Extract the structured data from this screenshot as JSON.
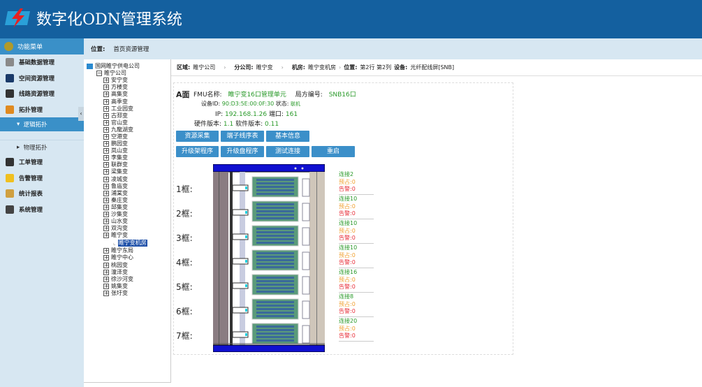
{
  "header": {
    "title": "数字化ODN管理系统"
  },
  "sidebar": {
    "menu_title": "功能菜单",
    "items": [
      {
        "label": "基础数据管理",
        "icon": "calculator-icon",
        "color": "#8a8a8a"
      },
      {
        "label": "空间资源管理",
        "icon": "globe-icon",
        "color": "#1a3a6a"
      },
      {
        "label": "线路资源管理",
        "icon": "headphones-icon",
        "color": "#333333"
      },
      {
        "label": "拓扑管理",
        "icon": "topology-icon",
        "color": "#e08a20"
      }
    ],
    "sub_selected": "逻辑拓扑",
    "sub_other": "物理拓扑",
    "items2": [
      {
        "label": "工单管理",
        "icon": "book-icon",
        "color": "#333333"
      },
      {
        "label": "告警管理",
        "icon": "bulb-icon",
        "color": "#f0c020"
      },
      {
        "label": "统计报表",
        "icon": "report-icon",
        "color": "#d0a040"
      },
      {
        "label": "系统管理",
        "icon": "tools-icon",
        "color": "#444444"
      }
    ]
  },
  "location": {
    "label": "位置:",
    "value": "首页资源管理"
  },
  "tree": {
    "root": "国网睢宁供电公司",
    "company": "睢宁公司",
    "nodes_before": [
      "安宁变",
      "方楼变",
      "高集变",
      "高季变",
      "工业园变",
      "古邳变",
      "官山变",
      "九龍湖变",
      "空港变",
      "鹏园变",
      "岚山变",
      "李集变",
      "联群变",
      "梁集变",
      "凌城变",
      "鲁庙变",
      "浦棠变",
      "秦庄变",
      "邱集变",
      "沙集变",
      "山水变",
      "双沟变"
    ],
    "expanded": "睢宁变",
    "selected": "睢宁变机房",
    "nodes_after": [
      "睢宁东局",
      "睢宁中心",
      "桃园变",
      "潼泽变",
      "徐沙河变",
      "姚集变",
      "张圩变"
    ]
  },
  "breadcrumb": [
    {
      "k": "区域:",
      "v": "睢宁公司"
    },
    {
      "k": "分公司:",
      "v": "睢宁变"
    },
    {
      "k": "机房:",
      "v": "睢宁变机房"
    },
    {
      "k": "位置:",
      "v": "第2行 第2列"
    },
    {
      "k": "设备:",
      "v": "光纤配线屏[SNB]"
    }
  ],
  "device": {
    "face": "A面",
    "fmu_label": "FMU名称:",
    "fmu": "睢宁变16口管理单元",
    "office_label": "局方编号:",
    "office": "SNB16口",
    "id_label": "设备ID:",
    "id": "90:D3:5E:00:0F:30",
    "state_label": "状态:",
    "state": "联机",
    "ip_label": "IP:",
    "ip": "192.168.1.26",
    "port_label": "端口:",
    "port": "161",
    "hw_label": "硬件版本:",
    "hw": "1.1",
    "sw_label": "软件版本:",
    "sw": "0.11"
  },
  "buttons": [
    "资源采集",
    "端子线序表",
    "基本信息",
    "升级架程序",
    "升级盘程序",
    "测试连接",
    "重启"
  ],
  "frames": [
    {
      "label": "1框:",
      "connect": "连接2",
      "reserve": "预占:0",
      "alarm": "告警:0"
    },
    {
      "label": "2框:",
      "connect": "连接10",
      "reserve": "预占:0",
      "alarm": "告警:0"
    },
    {
      "label": "3框:",
      "connect": "连接10",
      "reserve": "预占:0",
      "alarm": "告警:0"
    },
    {
      "label": "4框:",
      "connect": "连接10",
      "reserve": "预占:0",
      "alarm": "告警:0"
    },
    {
      "label": "5框:",
      "connect": "连接16",
      "reserve": "预占:0",
      "alarm": "告警:0"
    },
    {
      "label": "6框:",
      "connect": "连接8",
      "reserve": "预占:0",
      "alarm": "告警:0"
    },
    {
      "label": "7框:",
      "connect": "连接20",
      "reserve": "预占:0",
      "alarm": "告警:0"
    }
  ]
}
